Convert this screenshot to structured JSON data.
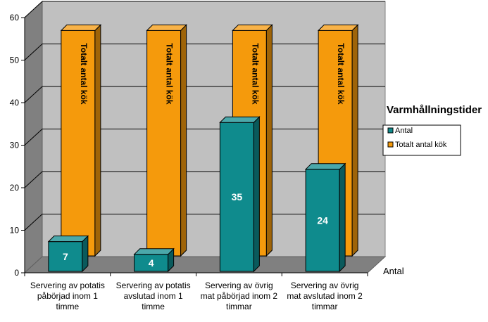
{
  "chart_data": {
    "type": "bar",
    "title": "Varmhållningstider",
    "categories": [
      [
        "Servering av potatis",
        "påbörjad inom 1",
        "timme"
      ],
      [
        "Servering av potatis",
        "avslutad inom 1",
        "timme"
      ],
      [
        "Servering av övrig",
        "mat påbörjad inom 2",
        "timmar"
      ],
      [
        "Servering av övrig",
        "mat avslutad inom 2",
        "timmar"
      ]
    ],
    "series": [
      {
        "name": "Antal",
        "values": [
          7,
          4,
          35,
          24
        ],
        "color": "#0f8b8d"
      },
      {
        "name": "Totalt antal kök",
        "values": [
          53,
          53,
          53,
          53
        ],
        "color": "#f59a0c",
        "bar_label": "Totalt antal kök"
      }
    ],
    "depth_axis_label": "Antal",
    "ylim": [
      0,
      60
    ],
    "yticks": [
      0,
      10,
      20,
      30,
      40,
      50,
      60
    ],
    "grid": true,
    "legend_position": "right",
    "walls": {
      "back": "#c0c0c0",
      "side": "#808080",
      "floor": "#808080"
    }
  }
}
